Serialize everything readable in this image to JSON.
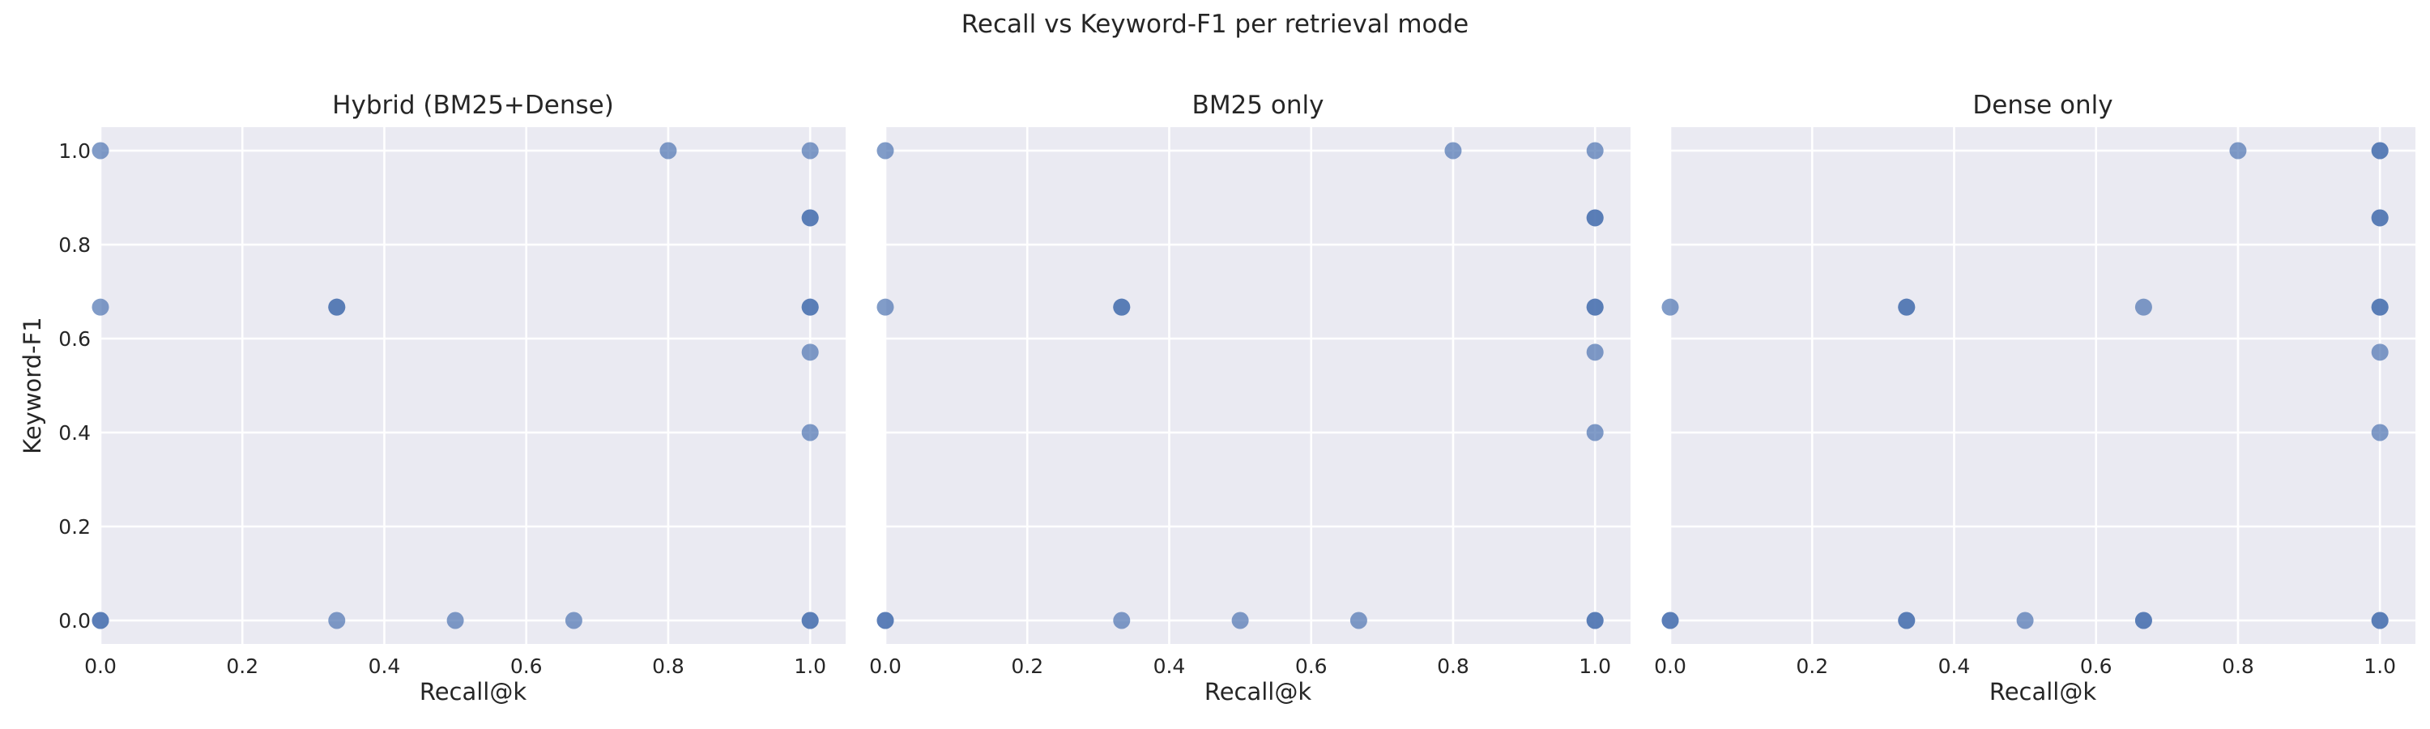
{
  "figure": {
    "title": "Recall vs Keyword-F1 per retrieval mode",
    "point_color": "#4c72b0",
    "point_alpha": 0.7,
    "background_color": "#eaeaf2",
    "grid_color": "#ffffff"
  },
  "chart_data": [
    {
      "type": "scatter",
      "title": "Hybrid (BM25+Dense)",
      "xlabel": "Recall@k",
      "ylabel": "Keyword-F1",
      "xlim": [
        0.0,
        1.05
      ],
      "ylim": [
        -0.05,
        1.05
      ],
      "xticks": [
        0.0,
        0.2,
        0.4,
        0.6,
        0.8,
        1.0
      ],
      "xtick_labels": [
        "0.0",
        "0.2",
        "0.4",
        "0.6",
        "0.8",
        "1.0"
      ],
      "yticks": [
        0.0,
        0.2,
        0.4,
        0.6,
        0.8,
        1.0
      ],
      "ytick_labels": [
        "0.0",
        "0.2",
        "0.4",
        "0.6",
        "0.8",
        "1.0"
      ],
      "grid": true,
      "points": [
        {
          "x": 0.0,
          "y": 1.0
        },
        {
          "x": 0.0,
          "y": 0.667
        },
        {
          "x": 0.0,
          "y": 0.0
        },
        {
          "x": 0.0,
          "y": 0.0
        },
        {
          "x": 0.333,
          "y": 0.667
        },
        {
          "x": 0.333,
          "y": 0.667
        },
        {
          "x": 0.333,
          "y": 0.0
        },
        {
          "x": 0.5,
          "y": 0.0
        },
        {
          "x": 0.667,
          "y": 0.0
        },
        {
          "x": 0.8,
          "y": 1.0
        },
        {
          "x": 1.0,
          "y": 1.0
        },
        {
          "x": 1.0,
          "y": 0.857
        },
        {
          "x": 1.0,
          "y": 0.857
        },
        {
          "x": 1.0,
          "y": 0.667
        },
        {
          "x": 1.0,
          "y": 0.667
        },
        {
          "x": 1.0,
          "y": 0.571
        },
        {
          "x": 1.0,
          "y": 0.4
        },
        {
          "x": 1.0,
          "y": 0.0
        },
        {
          "x": 1.0,
          "y": 0.0
        }
      ]
    },
    {
      "type": "scatter",
      "title": "BM25 only",
      "xlabel": "Recall@k",
      "ylabel": "",
      "xlim": [
        0.0,
        1.05
      ],
      "ylim": [
        -0.05,
        1.05
      ],
      "xticks": [
        0.0,
        0.2,
        0.4,
        0.6,
        0.8,
        1.0
      ],
      "xtick_labels": [
        "0.0",
        "0.2",
        "0.4",
        "0.6",
        "0.8",
        "1.0"
      ],
      "yticks": [
        0.0,
        0.2,
        0.4,
        0.6,
        0.8,
        1.0
      ],
      "ytick_labels": [],
      "grid": true,
      "points": [
        {
          "x": 0.0,
          "y": 1.0
        },
        {
          "x": 0.0,
          "y": 0.667
        },
        {
          "x": 0.0,
          "y": 0.0
        },
        {
          "x": 0.0,
          "y": 0.0
        },
        {
          "x": 0.333,
          "y": 0.667
        },
        {
          "x": 0.333,
          "y": 0.667
        },
        {
          "x": 0.333,
          "y": 0.0
        },
        {
          "x": 0.5,
          "y": 0.0
        },
        {
          "x": 0.667,
          "y": 0.0
        },
        {
          "x": 0.8,
          "y": 1.0
        },
        {
          "x": 1.0,
          "y": 1.0
        },
        {
          "x": 1.0,
          "y": 0.857
        },
        {
          "x": 1.0,
          "y": 0.857
        },
        {
          "x": 1.0,
          "y": 0.667
        },
        {
          "x": 1.0,
          "y": 0.667
        },
        {
          "x": 1.0,
          "y": 0.571
        },
        {
          "x": 1.0,
          "y": 0.4
        },
        {
          "x": 1.0,
          "y": 0.0
        },
        {
          "x": 1.0,
          "y": 0.0
        }
      ]
    },
    {
      "type": "scatter",
      "title": "Dense only",
      "xlabel": "Recall@k",
      "ylabel": "",
      "xlim": [
        0.0,
        1.05
      ],
      "ylim": [
        -0.05,
        1.05
      ],
      "xticks": [
        0.0,
        0.2,
        0.4,
        0.6,
        0.8,
        1.0
      ],
      "xtick_labels": [
        "0.0",
        "0.2",
        "0.4",
        "0.6",
        "0.8",
        "1.0"
      ],
      "yticks": [
        0.0,
        0.2,
        0.4,
        0.6,
        0.8,
        1.0
      ],
      "ytick_labels": [],
      "grid": true,
      "points": [
        {
          "x": 0.0,
          "y": 0.667
        },
        {
          "x": 0.0,
          "y": 0.0
        },
        {
          "x": 0.0,
          "y": 0.0
        },
        {
          "x": 0.333,
          "y": 0.667
        },
        {
          "x": 0.333,
          "y": 0.667
        },
        {
          "x": 0.333,
          "y": 0.0
        },
        {
          "x": 0.333,
          "y": 0.0
        },
        {
          "x": 0.5,
          "y": 0.0
        },
        {
          "x": 0.667,
          "y": 0.667
        },
        {
          "x": 0.667,
          "y": 0.0
        },
        {
          "x": 0.667,
          "y": 0.0
        },
        {
          "x": 0.8,
          "y": 1.0
        },
        {
          "x": 1.0,
          "y": 1.0
        },
        {
          "x": 1.0,
          "y": 1.0
        },
        {
          "x": 1.0,
          "y": 0.857
        },
        {
          "x": 1.0,
          "y": 0.857
        },
        {
          "x": 1.0,
          "y": 0.667
        },
        {
          "x": 1.0,
          "y": 0.667
        },
        {
          "x": 1.0,
          "y": 0.571
        },
        {
          "x": 1.0,
          "y": 0.4
        },
        {
          "x": 1.0,
          "y": 0.0
        },
        {
          "x": 1.0,
          "y": 0.0
        }
      ]
    }
  ]
}
